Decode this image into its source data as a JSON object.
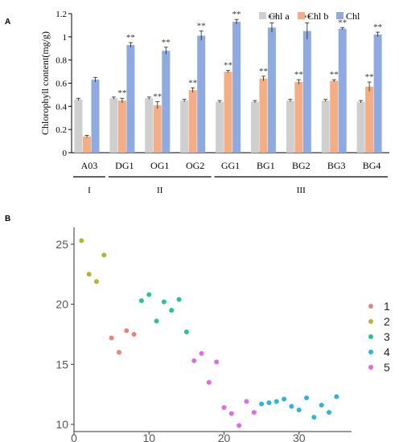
{
  "panels": {
    "a": "A",
    "b": "B"
  },
  "chart_data": [
    {
      "type": "bar",
      "ylabel": "Chlorophyll content(mg/g)",
      "ylim": [
        0,
        1.2
      ],
      "yticks": [
        0,
        0.2,
        0.4,
        0.6,
        0.8,
        1,
        1.2
      ],
      "yticklabels": [
        "0",
        "0.2",
        "0.4",
        "0.6",
        "0.8",
        "1",
        "1.2"
      ],
      "categories": [
        "A03",
        "DG1",
        "OG1",
        "OG2",
        "GG1",
        "BG1",
        "BG2",
        "BG3",
        "BG4"
      ],
      "groups": [
        {
          "label": "I",
          "from": 0,
          "to": 0
        },
        {
          "label": "II",
          "from": 1,
          "to": 3
        },
        {
          "label": "III",
          "from": 4,
          "to": 8
        }
      ],
      "legend_position": "top-right",
      "series": [
        {
          "name": "Chl a",
          "color": "#cfcfcf",
          "values": [
            0.46,
            0.47,
            0.47,
            0.45,
            0.44,
            0.44,
            0.45,
            0.45,
            0.44
          ],
          "errors": [
            0.01,
            0.01,
            0.01,
            0.01,
            0.01,
            0.01,
            0.01,
            0.01,
            0.01
          ],
          "significance": [
            "",
            "",
            "",
            "",
            "",
            "",
            "",
            "",
            ""
          ]
        },
        {
          "name": "Chl b",
          "color": "#f4ae86",
          "values": [
            0.14,
            0.45,
            0.41,
            0.54,
            0.7,
            0.64,
            0.61,
            0.62,
            0.57
          ],
          "errors": [
            0.01,
            0.02,
            0.03,
            0.02,
            0.01,
            0.02,
            0.02,
            0.01,
            0.04
          ],
          "significance": [
            "",
            "**",
            "**",
            "**",
            "**",
            "**",
            "**",
            "**",
            "**"
          ]
        },
        {
          "name": "Chl",
          "color": "#8eaae0",
          "values": [
            0.63,
            0.93,
            0.88,
            1.01,
            1.13,
            1.08,
            1.05,
            1.07,
            1.02
          ],
          "errors": [
            0.02,
            0.02,
            0.03,
            0.04,
            0.02,
            0.04,
            0.07,
            0.01,
            0.02
          ],
          "significance": [
            "",
            "**",
            "**",
            "**",
            "**",
            "**",
            "**",
            "**",
            "**"
          ]
        }
      ]
    },
    {
      "type": "scatter",
      "xlim": [
        0,
        37
      ],
      "ylim": [
        9.4,
        26.4
      ],
      "xticks": [
        0,
        10,
        20,
        30
      ],
      "yticks": [
        10,
        15,
        20,
        25
      ],
      "legend_position": "right",
      "series": [
        {
          "name": "1",
          "color": "#e8847a",
          "points": [
            [
              5,
              17.2
            ],
            [
              6,
              16.0
            ],
            [
              7,
              17.8
            ],
            [
              8,
              17.5
            ]
          ]
        },
        {
          "name": "2",
          "color": "#b5b531",
          "points": [
            [
              1,
              25.3
            ],
            [
              2,
              22.5
            ],
            [
              3,
              21.9
            ],
            [
              4,
              24.1
            ]
          ]
        },
        {
          "name": "3",
          "color": "#2bc38e",
          "points": [
            [
              9,
              20.3
            ],
            [
              10,
              20.8
            ],
            [
              11,
              18.6
            ],
            [
              12,
              20.2
            ],
            [
              13,
              19.5
            ],
            [
              14,
              20.4
            ],
            [
              15,
              17.7
            ]
          ]
        },
        {
          "name": "4",
          "color": "#2db5df",
          "points": [
            [
              25,
              11.7
            ],
            [
              26,
              11.8
            ],
            [
              27,
              11.9
            ],
            [
              28,
              12.1
            ],
            [
              29,
              11.5
            ],
            [
              30,
              11.2
            ],
            [
              31,
              12.2
            ],
            [
              32,
              10.6
            ],
            [
              33,
              11.6
            ],
            [
              34,
              11.0
            ],
            [
              35,
              12.3
            ]
          ]
        },
        {
          "name": "5",
          "color": "#df6be8",
          "points": [
            [
              16,
              15.3
            ],
            [
              17,
              15.9
            ],
            [
              18,
              13.5
            ],
            [
              19,
              15.2
            ],
            [
              20,
              11.4
            ],
            [
              21,
              10.9
            ],
            [
              22,
              9.9
            ],
            [
              23,
              11.9
            ],
            [
              24,
              11.0
            ]
          ]
        }
      ]
    }
  ]
}
